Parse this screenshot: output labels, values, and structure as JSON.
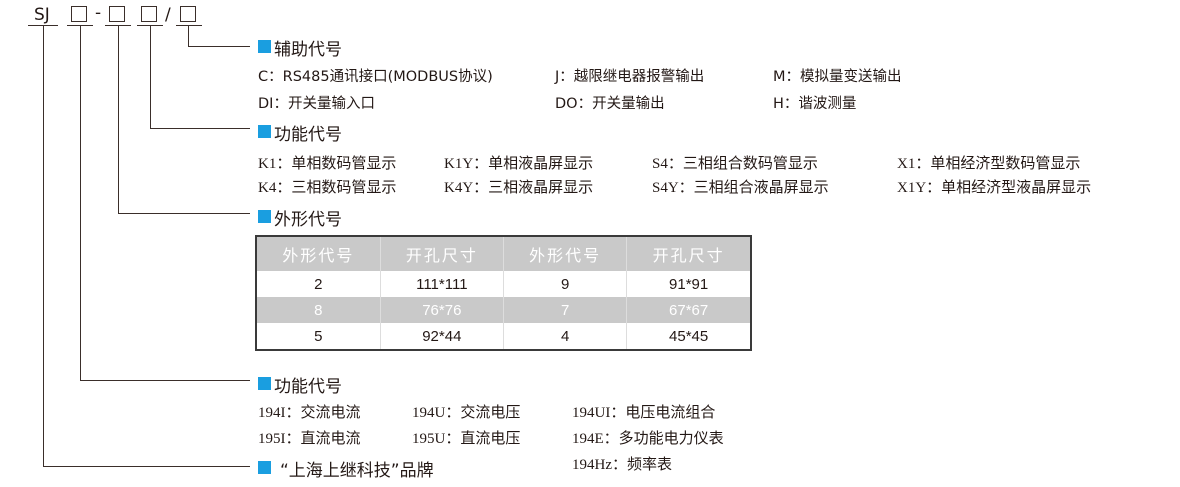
{
  "code": {
    "prefix": "SJ",
    "dash": "-",
    "slash": "/"
  },
  "accent_color": "#1a9ee0",
  "aux": {
    "title": "辅助代号",
    "items": [
      "C：RS485通讯接口(MODBUS协议)",
      "J：越限继电器报警输出",
      "M：模拟量变送输出",
      "DI：开关量输入口",
      "DO：开关量输出",
      "H：谐波测量"
    ]
  },
  "func1": {
    "title": "功能代号",
    "items": [
      "K1：单相数码管显示",
      "K1Y：单相液晶屏显示",
      "S4：三相组合数码管显示",
      "X1：单相经济型数码管显示",
      "K4：三相数码管显示",
      "K4Y：三相液晶屏显示",
      "S4Y：三相组合液晶屏显示",
      "X1Y：单相经济型液晶屏显示"
    ]
  },
  "shape": {
    "title": "外形代号",
    "headers": [
      "外形代号",
      "开孔尺寸",
      "外形代号",
      "开孔尺寸"
    ],
    "rows": [
      [
        "2",
        "111*111",
        "9",
        "91*91"
      ],
      [
        "8",
        "76*76",
        "7",
        "67*67"
      ],
      [
        "5",
        "92*44",
        "4",
        "45*45"
      ]
    ]
  },
  "func2": {
    "title": "功能代号",
    "items": [
      "194I：交流电流",
      "194U：交流电压",
      "194UI：电压电流组合",
      "195I：直流电流",
      "195U：直流电压",
      "194E：多功能电力仪表",
      "194Hz：频率表"
    ]
  },
  "brand": {
    "title": "“上海上继科技”品牌"
  }
}
